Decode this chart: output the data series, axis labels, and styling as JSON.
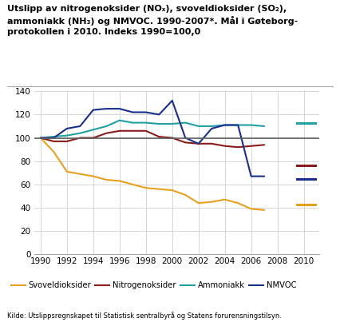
{
  "title": "Utslipp av nitrogenoksider (NOₓ), svoveldioksider (SO₂),\nammoniakk (NH₃) og NMVOC. 1990-2007*. Mål i Gøteborg-\nprotokollen i 2010. Indeks 1990=100,0",
  "source": "Kilde: Utslippsregnskapet til Statistisk sentralbyrå og Statens forurensningstilsyn.",
  "years": [
    1990,
    1991,
    1992,
    1993,
    1994,
    1995,
    1996,
    1997,
    1998,
    1999,
    2000,
    2001,
    2002,
    2003,
    2004,
    2005,
    2006,
    2007
  ],
  "SO2": [
    100,
    88,
    71,
    69,
    67,
    64,
    63,
    60,
    57,
    56,
    55,
    51,
    44,
    45,
    47,
    44,
    39,
    38
  ],
  "NOX": [
    100,
    97,
    97,
    100,
    100,
    104,
    106,
    106,
    106,
    101,
    100,
    96,
    95,
    95,
    93,
    92,
    93,
    94
  ],
  "NH3": [
    100,
    101,
    102,
    104,
    107,
    110,
    115,
    113,
    113,
    112,
    112,
    113,
    110,
    110,
    111,
    111,
    111,
    110
  ],
  "NMVOC": [
    100,
    100,
    108,
    110,
    124,
    125,
    125,
    122,
    122,
    120,
    132,
    100,
    95,
    108,
    111,
    111,
    67,
    67
  ],
  "SO2_target_2010": 43,
  "NOX_target_2010": 76,
  "NH3_target_2010": 113,
  "NMVOC_target_2010": 65,
  "color_SO2": "#e8a020",
  "color_NOX": "#8b1a1a",
  "color_NH3": "#20a0a0",
  "color_NMVOC": "#1a2f8b",
  "color_ref_line": "#606060",
  "ylim": [
    0,
    140
  ],
  "yticks": [
    0,
    20,
    40,
    60,
    80,
    100,
    120,
    140
  ],
  "xlim": [
    1989.5,
    2011.2
  ],
  "xticks": [
    1990,
    1992,
    1994,
    1996,
    1998,
    2000,
    2002,
    2004,
    2006,
    2008,
    2010
  ],
  "legend_labels": [
    "Svoveldioksider",
    "Nitrogenoksider",
    "Ammoniakk",
    "NMVOC"
  ],
  "background_color": "#ffffff",
  "grid_color": "#d0d0d0"
}
